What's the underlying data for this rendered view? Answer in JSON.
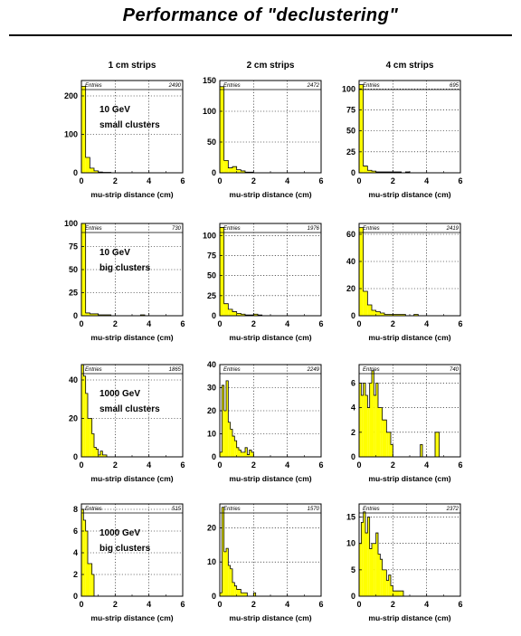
{
  "title": "Performance of \"declustering\"",
  "column_titles": [
    "1 cm strips",
    "2 cm strips",
    "4 cm strips"
  ],
  "stat_box_label": "Entries",
  "style": {
    "fill_color": "#ffff00",
    "line_color": "#000000",
    "grid": "dotted"
  },
  "chart_data": [
    {
      "type": "bar",
      "xlabel": "mu-strip distance (cm)",
      "xlim": [
        0,
        6
      ],
      "ylim": [
        0,
        240
      ],
      "yticks": [
        0,
        100,
        200
      ],
      "entries": "2490",
      "annotation": [
        "10 GeV",
        "small clusters"
      ],
      "bin_width": 0.25,
      "values": [
        225,
        40,
        12,
        5,
        2,
        1,
        1,
        0,
        0,
        0,
        0,
        0,
        0,
        0,
        0,
        0,
        0,
        0,
        0,
        0,
        0,
        0,
        0,
        0
      ]
    },
    {
      "type": "bar",
      "xlabel": "mu-strip distance (cm)",
      "xlim": [
        0,
        6
      ],
      "ylim": [
        0,
        150
      ],
      "yticks": [
        0,
        50,
        100,
        150
      ],
      "entries": "2472",
      "annotation": [],
      "bin_width": 0.25,
      "values": [
        140,
        20,
        8,
        10,
        5,
        3,
        1,
        1,
        0,
        0,
        0,
        0,
        0,
        0,
        0,
        0,
        0,
        0,
        0,
        0,
        0,
        0,
        0,
        0
      ]
    },
    {
      "type": "bar",
      "xlabel": "mu-strip distance (cm)",
      "xlim": [
        0,
        6
      ],
      "ylim": [
        0,
        110
      ],
      "yticks": [
        0,
        25,
        50,
        75,
        100
      ],
      "entries": "695",
      "annotation": [],
      "bin_width": 0.25,
      "values": [
        105,
        8,
        3,
        2,
        1,
        1,
        1,
        1,
        1,
        1,
        0,
        1,
        0,
        0,
        0,
        0,
        0,
        0,
        0,
        0,
        0,
        0,
        0,
        0
      ]
    },
    {
      "type": "bar",
      "xlabel": "mu-strip distance (cm)",
      "xlim": [
        0,
        6
      ],
      "ylim": [
        0,
        100
      ],
      "yticks": [
        0,
        25,
        50,
        75,
        100
      ],
      "entries": "730",
      "annotation": [
        "10 GeV",
        "big clusters"
      ],
      "bin_width": 0.25,
      "values": [
        100,
        3,
        2,
        2,
        1,
        1,
        1,
        0,
        0,
        0,
        0,
        0,
        0,
        0,
        1,
        0,
        0,
        0,
        0,
        0,
        0,
        0,
        0,
        0
      ]
    },
    {
      "type": "bar",
      "xlabel": "mu-strip distance (cm)",
      "xlim": [
        0,
        6
      ],
      "ylim": [
        0,
        115
      ],
      "yticks": [
        0,
        25,
        50,
        75,
        100
      ],
      "entries": "1976",
      "annotation": [],
      "bin_width": 0.25,
      "values": [
        110,
        15,
        8,
        5,
        3,
        2,
        1,
        1,
        2,
        1,
        0,
        0,
        0,
        0,
        0,
        0,
        0,
        0,
        0,
        0,
        0,
        0,
        0,
        0
      ]
    },
    {
      "type": "bar",
      "xlabel": "mu-strip distance (cm)",
      "xlim": [
        0,
        6
      ],
      "ylim": [
        0,
        68
      ],
      "yticks": [
        0,
        20,
        40,
        60
      ],
      "entries": "2419",
      "annotation": [],
      "bin_width": 0.25,
      "values": [
        65,
        18,
        8,
        4,
        3,
        2,
        1,
        1,
        1,
        1,
        1,
        0,
        0,
        1,
        0,
        0,
        0,
        0,
        0,
        0,
        0,
        0,
        0,
        0
      ]
    },
    {
      "type": "bar",
      "xlabel": "mu-strip distance (cm)",
      "xlim": [
        0,
        6
      ],
      "ylim": [
        0,
        48
      ],
      "yticks": [
        0,
        20,
        40
      ],
      "entries": "1865",
      "annotation": [
        "1000 GeV",
        "small clusters"
      ],
      "bin_width": 0.125,
      "values": [
        48,
        42,
        33,
        20,
        20,
        12,
        5,
        4,
        1,
        3,
        1,
        1,
        0,
        0,
        0,
        0,
        0,
        0,
        0,
        0,
        0,
        0,
        0,
        0,
        0,
        0,
        0,
        0,
        0,
        0,
        0,
        0,
        0,
        0,
        0,
        0,
        0,
        0,
        0,
        0,
        0,
        0,
        0,
        0,
        0,
        0,
        0,
        0
      ]
    },
    {
      "type": "bar",
      "xlabel": "mu-strip distance (cm)",
      "xlim": [
        0,
        6
      ],
      "ylim": [
        0,
        40
      ],
      "yticks": [
        0,
        10,
        20,
        30,
        40
      ],
      "entries": "2249",
      "annotation": [],
      "bin_width": 0.125,
      "values": [
        2,
        31,
        20,
        33,
        15,
        12,
        9,
        7,
        4,
        3,
        2,
        2,
        4,
        1,
        3,
        2,
        0,
        0,
        0,
        0,
        0,
        0,
        0,
        0,
        0,
        0,
        0,
        0,
        0,
        0,
        0,
        0,
        0,
        0,
        0,
        0,
        0,
        0,
        0,
        0,
        0,
        0,
        0,
        0,
        0,
        0,
        0,
        0
      ]
    },
    {
      "type": "bar",
      "xlabel": "mu-strip distance (cm)",
      "xlim": [
        0,
        6
      ],
      "ylim": [
        0,
        7.5
      ],
      "yticks": [
        0,
        2,
        4,
        6
      ],
      "entries": "740",
      "annotation": [],
      "bin_width": 0.125,
      "values": [
        6,
        5,
        6,
        5,
        4,
        6,
        7,
        5,
        6,
        4,
        4,
        3,
        3,
        2,
        2,
        1,
        0,
        0,
        0,
        0,
        0,
        0,
        0,
        0,
        0,
        0,
        0,
        0,
        0,
        1,
        0,
        0,
        0,
        0,
        0,
        0,
        2,
        2,
        0,
        0,
        0,
        0,
        0,
        0,
        0,
        0,
        0,
        0
      ]
    },
    {
      "type": "bar",
      "xlabel": "mu-strip distance (cm)",
      "xlim": [
        0,
        6
      ],
      "ylim": [
        0,
        8.5
      ],
      "yticks": [
        0,
        2,
        4,
        6,
        8
      ],
      "entries": "515",
      "annotation": [
        "1000 GeV",
        "big clusters"
      ],
      "bin_width": 0.125,
      "values": [
        8,
        7,
        6,
        3,
        3,
        2,
        0,
        0,
        0,
        0,
        0,
        0,
        0,
        0,
        0,
        0,
        0,
        0,
        0,
        0,
        0,
        0,
        0,
        0,
        0,
        0,
        0,
        0,
        0,
        0,
        0,
        0,
        0,
        0,
        0,
        0,
        0,
        0,
        0,
        0,
        0,
        0,
        0,
        0,
        0,
        0,
        0,
        0
      ]
    },
    {
      "type": "bar",
      "xlabel": "mu-strip distance (cm)",
      "xlim": [
        0,
        6
      ],
      "ylim": [
        0,
        27
      ],
      "yticks": [
        0,
        10,
        20
      ],
      "entries": "1570",
      "annotation": [],
      "bin_width": 0.125,
      "values": [
        1,
        26,
        13,
        14,
        9,
        8,
        4,
        3,
        2,
        2,
        1,
        1,
        1,
        0,
        0,
        0,
        1,
        0,
        0,
        0,
        0,
        0,
        0,
        0,
        0,
        0,
        0,
        0,
        0,
        0,
        0,
        0,
        0,
        0,
        0,
        0,
        0,
        0,
        0,
        0,
        0,
        0,
        0,
        0,
        0,
        0,
        0,
        0
      ]
    },
    {
      "type": "bar",
      "xlabel": "mu-strip distance (cm)",
      "xlim": [
        0,
        6
      ],
      "ylim": [
        0,
        17.5
      ],
      "yticks": [
        0,
        5,
        10,
        15
      ],
      "entries": "2372",
      "annotation": [],
      "bin_width": 0.125,
      "values": [
        10,
        14,
        16,
        12,
        15,
        9,
        10,
        10,
        12,
        8,
        7,
        5,
        5,
        3,
        4,
        2,
        1,
        1,
        1,
        1,
        1,
        0,
        0,
        0,
        0,
        0,
        0,
        0,
        0,
        0,
        0,
        0,
        0,
        0,
        0,
        0,
        0,
        0,
        0,
        0,
        0,
        0,
        0,
        0,
        0,
        0,
        0,
        0
      ]
    }
  ]
}
